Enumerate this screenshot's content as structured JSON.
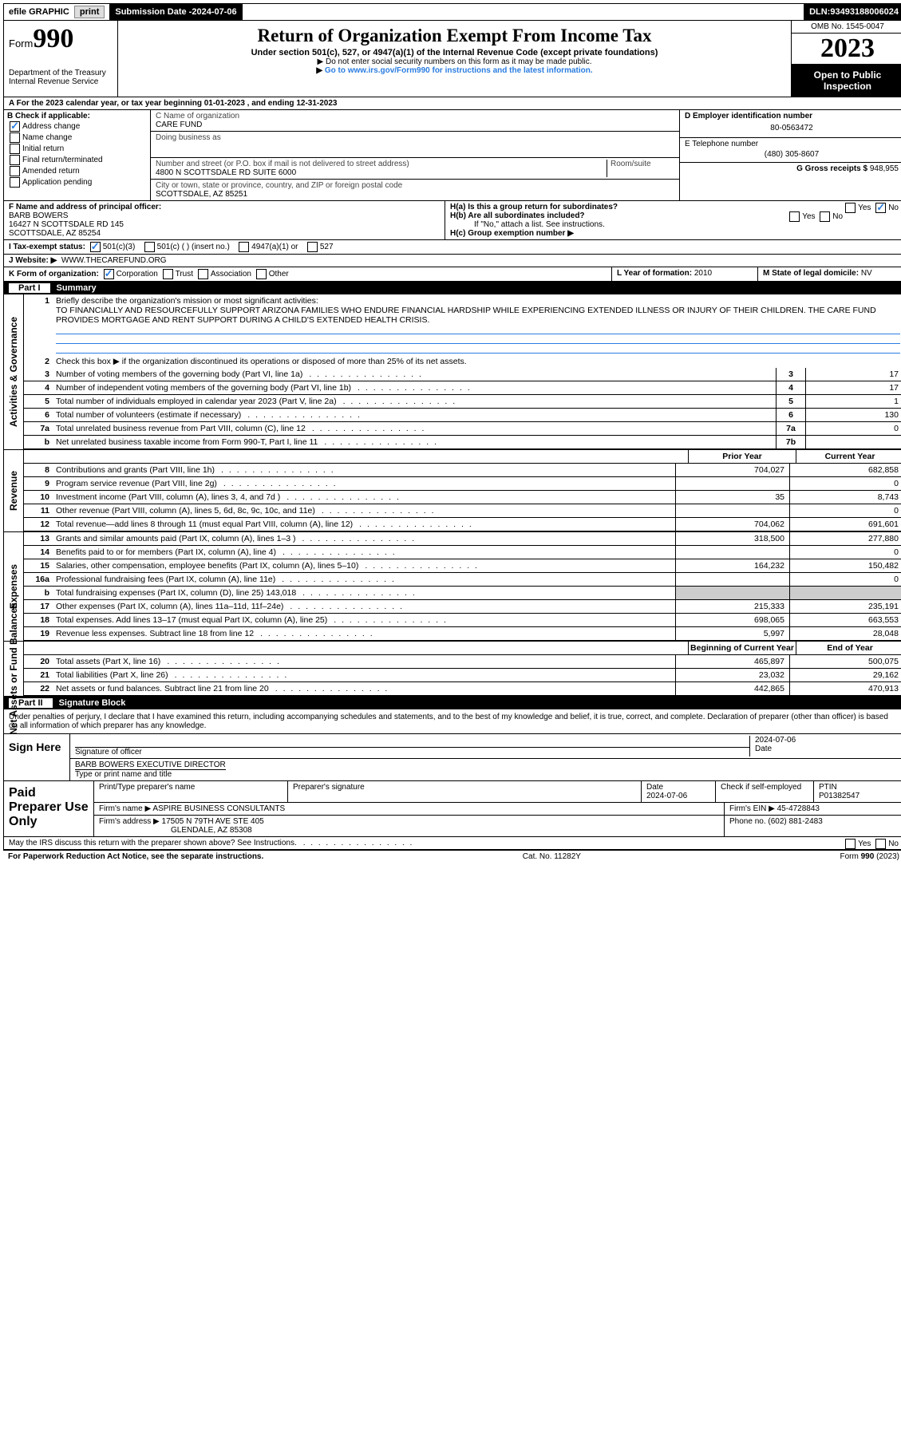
{
  "topbar": {
    "efile": "efile GRAPHIC",
    "print": "print",
    "subdate_lab": "Submission Date - ",
    "subdate": "2024-07-06",
    "dln_lab": "DLN: ",
    "dln": "93493188006024"
  },
  "hdr": {
    "form_word": "Form",
    "form_no": "990",
    "dept": "Department of the Treasury",
    "irs": "Internal Revenue Service",
    "title": "Return of Organization Exempt From Income Tax",
    "sub1": "Under section 501(c), 527, or 4947(a)(1) of the Internal Revenue Code (except private foundations)",
    "sub2": "Do not enter social security numbers on this form as it may be made public.",
    "sub3": "Go to www.irs.gov/Form990 for instructions and the latest information.",
    "omb": "OMB No. 1545-0047",
    "year": "2023",
    "open": "Open to Public Inspection"
  },
  "A": {
    "text": "A For the 2023 calendar year, or tax year beginning 01-01-2023   , and ending 12-31-2023"
  },
  "B": {
    "title": "B Check if applicable:",
    "items": [
      "Address change",
      "Name change",
      "Initial return",
      "Final return/terminated",
      "Amended return",
      "Application pending"
    ],
    "checked": [
      true,
      false,
      false,
      false,
      false,
      false
    ]
  },
  "C": {
    "name_lab": "C Name of organization",
    "name": "CARE FUND",
    "dba_lab": "Doing business as",
    "dba": "",
    "addr_lab": "Number and street (or P.O. box if mail is not delivered to street address)",
    "room_lab": "Room/suite",
    "addr": "4800 N SCOTTSDALE RD SUITE 6000",
    "city_lab": "City or town, state or province, country, and ZIP or foreign postal code",
    "city": "SCOTTSDALE, AZ  85251"
  },
  "D": {
    "ein_lab": "D Employer identification number",
    "ein": "80-0563472"
  },
  "E": {
    "tel_lab": "E Telephone number",
    "tel": "(480) 305-8607"
  },
  "G": {
    "gross_lab": "G Gross receipts $",
    "gross": "948,955"
  },
  "F": {
    "lab": "F Name and address of principal officer:",
    "name": "BARB BOWERS",
    "addr1": "16427 N SCOTTSDALE RD 145",
    "addr2": "SCOTTSDALE, AZ  85254"
  },
  "H": {
    "a": "H(a)  Is this a group return for subordinates?",
    "b": "H(b)  Are all subordinates included?",
    "bnote": "If \"No,\" attach a list. See instructions.",
    "c": "H(c)  Group exemption number ▶",
    "yes": "Yes",
    "no": "No"
  },
  "I": {
    "lab": "I    Tax-exempt status:",
    "opts": [
      "501(c)(3)",
      "501(c) (  ) (insert no.)",
      "4947(a)(1) or",
      "527"
    ]
  },
  "J": {
    "lab": "J    Website: ▶",
    "val": "WWW.THECAREFUND.ORG"
  },
  "K": {
    "lab": "K Form of organization:",
    "opts": [
      "Corporation",
      "Trust",
      "Association",
      "Other"
    ]
  },
  "L": {
    "lab": "L Year of formation: ",
    "val": "2010"
  },
  "M": {
    "lab": "M State of legal domicile: ",
    "val": "NV"
  },
  "part1": {
    "bar": "Summary",
    "pt": "Part I",
    "l1": "Briefly describe the organization's mission or most significant activities:",
    "mission": "TO FINANCIALLY AND RESOURCEFULLY SUPPORT ARIZONA FAMILIES WHO ENDURE FINANCIAL HARDSHIP WHILE EXPERIENCING EXTENDED ILLNESS OR INJURY OF THEIR CHILDREN. THE CARE FUND PROVIDES MORTGAGE AND RENT SUPPORT DURING A CHILD'S EXTENDED HEALTH CRISIS.",
    "l2": "Check this box ▶        if the organization discontinued its operations or disposed of more than 25% of its net assets.",
    "rows_gov": [
      {
        "n": "3",
        "t": "Number of voting members of the governing body (Part VI, line 1a)",
        "box": "3",
        "v": "17"
      },
      {
        "n": "4",
        "t": "Number of independent voting members of the governing body (Part VI, line 1b)",
        "box": "4",
        "v": "17"
      },
      {
        "n": "5",
        "t": "Total number of individuals employed in calendar year 2023 (Part V, line 2a)",
        "box": "5",
        "v": "1"
      },
      {
        "n": "6",
        "t": "Total number of volunteers (estimate if necessary)",
        "box": "6",
        "v": "130"
      },
      {
        "n": "7a",
        "t": "Total unrelated business revenue from Part VIII, column (C), line 12",
        "box": "7a",
        "v": "0"
      },
      {
        "n": "b",
        "t": "Net unrelated business taxable income from Form 990-T, Part I, line 11",
        "box": "7b",
        "v": ""
      }
    ],
    "py": "Prior Year",
    "cy": "Current Year",
    "rev": [
      {
        "n": "8",
        "t": "Contributions and grants (Part VIII, line 1h)",
        "p": "704,027",
        "c": "682,858"
      },
      {
        "n": "9",
        "t": "Program service revenue (Part VIII, line 2g)",
        "p": "",
        "c": "0"
      },
      {
        "n": "10",
        "t": "Investment income (Part VIII, column (A), lines 3, 4, and 7d )",
        "p": "35",
        "c": "8,743"
      },
      {
        "n": "11",
        "t": "Other revenue (Part VIII, column (A), lines 5, 6d, 8c, 9c, 10c, and 11e)",
        "p": "",
        "c": "0"
      },
      {
        "n": "12",
        "t": "Total revenue—add lines 8 through 11 (must equal Part VIII, column (A), line 12)",
        "p": "704,062",
        "c": "691,601"
      }
    ],
    "exp": [
      {
        "n": "13",
        "t": "Grants and similar amounts paid (Part IX, column (A), lines 1–3 )",
        "p": "318,500",
        "c": "277,880"
      },
      {
        "n": "14",
        "t": "Benefits paid to or for members (Part IX, column (A), line 4)",
        "p": "",
        "c": "0"
      },
      {
        "n": "15",
        "t": "Salaries, other compensation, employee benefits (Part IX, column (A), lines 5–10)",
        "p": "164,232",
        "c": "150,482"
      },
      {
        "n": "16a",
        "t": "Professional fundraising fees (Part IX, column (A), line 11e)",
        "p": "",
        "c": "0"
      },
      {
        "n": "b",
        "t": "Total fundraising expenses (Part IX, column (D), line 25) 143,018",
        "p": "—",
        "c": "—"
      },
      {
        "n": "17",
        "t": "Other expenses (Part IX, column (A), lines 11a–11d, 11f–24e)",
        "p": "215,333",
        "c": "235,191"
      },
      {
        "n": "18",
        "t": "Total expenses. Add lines 13–17 (must equal Part IX, column (A), line 25)",
        "p": "698,065",
        "c": "663,553"
      },
      {
        "n": "19",
        "t": "Revenue less expenses. Subtract line 18 from line 12",
        "p": "5,997",
        "c": "28,048"
      }
    ],
    "bcy": "Beginning of Current Year",
    "eoy": "End of Year",
    "na": [
      {
        "n": "20",
        "t": "Total assets (Part X, line 16)",
        "p": "465,897",
        "c": "500,075"
      },
      {
        "n": "21",
        "t": "Total liabilities (Part X, line 26)",
        "p": "23,032",
        "c": "29,162"
      },
      {
        "n": "22",
        "t": "Net assets or fund balances. Subtract line 21 from line 20",
        "p": "442,865",
        "c": "470,913"
      }
    ],
    "side_gov": "Activities & Governance",
    "side_rev": "Revenue",
    "side_exp": "Expenses",
    "side_na": "Net Assets or Fund Balances"
  },
  "part2": {
    "pt": "Part II",
    "bar": "Signature Block",
    "perjury": "Under penalties of perjury, I declare that I have examined this return, including accompanying schedules and statements, and to the best of my knowledge and belief, it is true, correct, and complete. Declaration of preparer (other than officer) is based on all information of which preparer has any knowledge."
  },
  "sign": {
    "here": "Sign Here",
    "sig_lab": "Signature of officer",
    "date_lab": "Date",
    "date": "2024-07-06",
    "name": "BARB BOWERS EXECUTIVE DIRECTOR",
    "type_lab": "Type or print name and title"
  },
  "ppu": {
    "title": "Paid Preparer Use Only",
    "h": [
      "Print/Type preparer's name",
      "Preparer's signature",
      "Date",
      "",
      "PTIN"
    ],
    "r1_date": "2024-07-06",
    "r1_check": "Check        if self-employed",
    "r1_ptin": "P01382547",
    "firm_lab": "Firm's name   ▶",
    "firm": "ASPIRE BUSINESS CONSULTANTS",
    "ein_lab": "Firm's EIN ▶",
    "ein": "45-4728843",
    "addr_lab": "Firm's address ▶",
    "addr": "17505 N 79TH AVE STE 405",
    "city": "GLENDALE, AZ  85308",
    "phone_lab": "Phone no.",
    "phone": "(602) 881-2483"
  },
  "discuss": "May the IRS discuss this return with the preparer shown above? See Instructions.",
  "foot": {
    "l": "For Paperwork Reduction Act Notice, see the separate instructions.",
    "c": "Cat. No. 11282Y",
    "r": "Form 990 (2023)"
  }
}
